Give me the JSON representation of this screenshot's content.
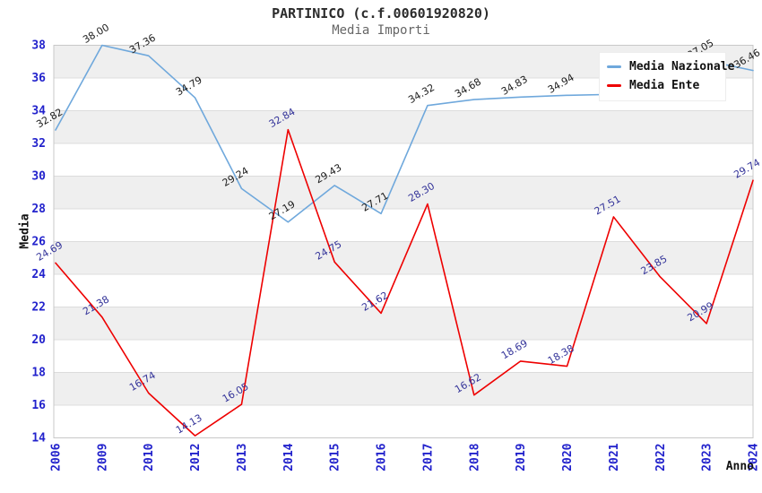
{
  "page": {
    "title": "PARTINICO (c.f.00601920820)",
    "subtitle": "Media Importi"
  },
  "colors": {
    "series_nazionale": "#6fa8dc",
    "series_ente": "#ee0000",
    "axis_tick_label": "#2222cc",
    "point_label_nazionale": "#1a1a1a",
    "point_label_ente": "#333399",
    "band_gray": "#efefef",
    "grid_line": "#dcdcdc",
    "plot_border": "#c8c8c8"
  },
  "legend": {
    "items": [
      {
        "label": "Media Nazionale"
      },
      {
        "label": "Media Ente"
      }
    ]
  },
  "chart_data": {
    "type": "line",
    "title": "PARTINICO (c.f.00601920820)",
    "subtitle": "Media Importi",
    "xlabel": "Anno",
    "ylabel": "Media",
    "ylim": [
      14,
      38
    ],
    "ytick_step": 2,
    "yticks": [
      14,
      16,
      18,
      20,
      22,
      24,
      26,
      28,
      30,
      32,
      34,
      36,
      38
    ],
    "grid": "horizontal gridlines every 2 units with alternating gray/white bands",
    "legend_position": "top-right",
    "categories": [
      "2006",
      "2009",
      "2010",
      "2012",
      "2013",
      "2014",
      "2015",
      "2016",
      "2017",
      "2018",
      "2019",
      "2020",
      "2021",
      "2022",
      "2023",
      "2024"
    ],
    "series": [
      {
        "name": "Media Nazionale",
        "color": "#6fa8dc",
        "label_color": "#1a1a1a",
        "values": [
          32.82,
          38.0,
          37.36,
          34.79,
          29.24,
          27.19,
          29.43,
          27.71,
          34.32,
          34.68,
          34.83,
          34.94,
          35.0,
          35.2,
          37.05,
          36.46
        ],
        "labels": [
          "32.82",
          "38.00",
          "37.36",
          "34.79",
          "29.24",
          "27.19",
          "29.43",
          "27.71",
          "34.32",
          "34.68",
          "34.83",
          "34.94",
          "",
          "",
          "37.05",
          "36.46"
        ]
      },
      {
        "name": "Media Ente",
        "color": "#ee0000",
        "label_color": "#333399",
        "values": [
          24.69,
          21.38,
          16.74,
          14.13,
          16.05,
          32.84,
          24.75,
          21.62,
          28.3,
          16.62,
          18.69,
          18.38,
          27.51,
          23.85,
          20.99,
          29.74
        ],
        "labels": [
          "24.69",
          "21.38",
          "16.74",
          "14.13",
          "16.05",
          "32.84",
          "24.75",
          "21.62",
          "28.30",
          "16.62",
          "18.69",
          "18.38",
          "27.51",
          "23.85",
          "20.99",
          "29.74"
        ]
      }
    ]
  }
}
